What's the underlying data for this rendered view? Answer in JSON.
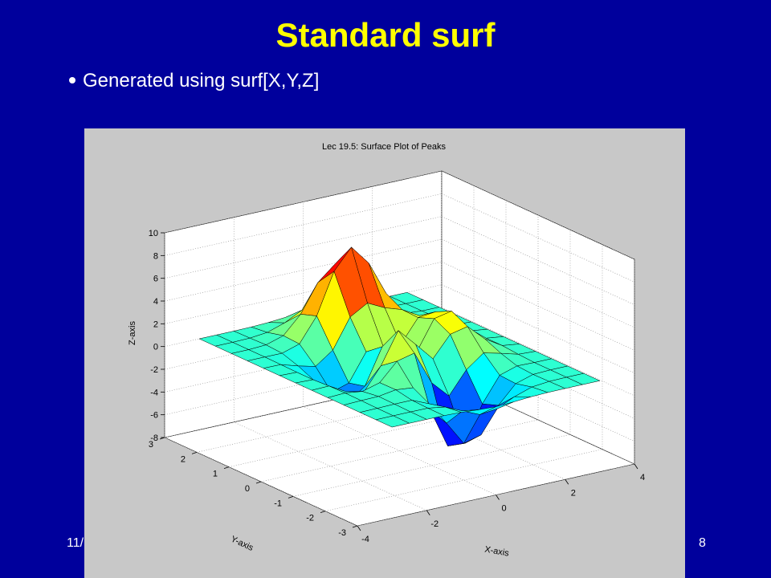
{
  "slide": {
    "title": "Standard surf",
    "bullet": "Generated using surf[X,Y,Z]",
    "footer_date": "11/",
    "page_number": "8"
  },
  "chart_data": {
    "type": "surface",
    "title": "Lec 19.5: Surface Plot of Peaks",
    "x_label": "X-axis",
    "y_label": "Y-axis",
    "z_label": "Z-axis",
    "x": [
      -3,
      -2.5,
      -2,
      -1.5,
      -1,
      -0.5,
      0,
      0.5,
      1,
      1.5,
      2,
      2.5,
      3
    ],
    "y": [
      -3,
      -2.5,
      -2,
      -1.5,
      -1,
      -0.5,
      0,
      0.5,
      1,
      1.5,
      2,
      2.5,
      3
    ],
    "z": [
      [
        0,
        0,
        0,
        -0.01,
        -0.06,
        -0.17,
        -0.24,
        -0.17,
        -0.06,
        -0.01,
        0,
        0,
        0
      ],
      [
        0,
        0.01,
        0.01,
        0,
        -0.24,
        -0.92,
        -1.58,
        -1.41,
        -0.69,
        -0.18,
        -0.03,
        0,
        0
      ],
      [
        0,
        0.02,
        0.05,
        0.05,
        -0.6,
        -2.64,
        -4.76,
        -4.35,
        -2.1,
        -0.53,
        -0.06,
        0,
        0
      ],
      [
        0,
        0.05,
        0.08,
        0.32,
        0.16,
        -2.16,
        -5.64,
        -5.74,
        -2.62,
        -0.44,
        0.04,
        0,
        0
      ],
      [
        0,
        0.07,
        -0.13,
        0.3,
        1.85,
        2.22,
        -0.73,
        -2.23,
        -0.27,
        0.88,
        0.5,
        0.08,
        0
      ],
      [
        0,
        0.04,
        -0.8,
        -1.21,
        0.8,
        3.56,
        2,
        0.39,
        2.21,
        2.55,
        1.12,
        0.2,
        0
      ],
      [
        0,
        -0.05,
        -1.33,
        -2.77,
        -1.65,
        1.49,
        0.98,
        0.37,
        2.94,
        3.26,
        1.41,
        0.2,
        0
      ],
      [
        0,
        -0.05,
        -1.12,
        -2.49,
        -2.01,
        0.39,
        0.46,
        0.37,
        2.38,
        2.55,
        1.1,
        0.2,
        0
      ],
      [
        0,
        -0.02,
        -0.48,
        -0.86,
        0.23,
        2.8,
        3.69,
        2.94,
        2.44,
        1.57,
        0.58,
        0.08,
        0
      ],
      [
        0,
        0,
        -0.01,
        0.47,
        2.59,
        6.17,
        7.96,
        6.23,
        3.24,
        1.18,
        0.29,
        0.02,
        0
      ],
      [
        0,
        0,
        0.08,
        0.55,
        2.1,
        4.56,
        5.86,
        4.57,
        2.21,
        0.68,
        0.13,
        0.01,
        0
      ],
      [
        0,
        0,
        0.03,
        0.19,
        0.69,
        1.47,
        1.89,
        1.47,
        0.7,
        0.2,
        0.04,
        0,
        0
      ],
      [
        0,
        0,
        0,
        0.02,
        0.08,
        0.2,
        0.3,
        0.2,
        0.08,
        0.02,
        0,
        0,
        0
      ]
    ],
    "xlim": [
      -4,
      4
    ],
    "ylim": [
      -3,
      3
    ],
    "zlim": [
      -8,
      10
    ],
    "xticks": [
      -4,
      -2,
      0,
      2,
      4
    ],
    "yticks": [
      -3,
      -2,
      -1,
      0,
      1,
      2,
      3
    ],
    "zticks": [
      -8,
      -6,
      -4,
      -2,
      0,
      2,
      4,
      6,
      8,
      10
    ],
    "grid": true,
    "colormap": "jet"
  }
}
